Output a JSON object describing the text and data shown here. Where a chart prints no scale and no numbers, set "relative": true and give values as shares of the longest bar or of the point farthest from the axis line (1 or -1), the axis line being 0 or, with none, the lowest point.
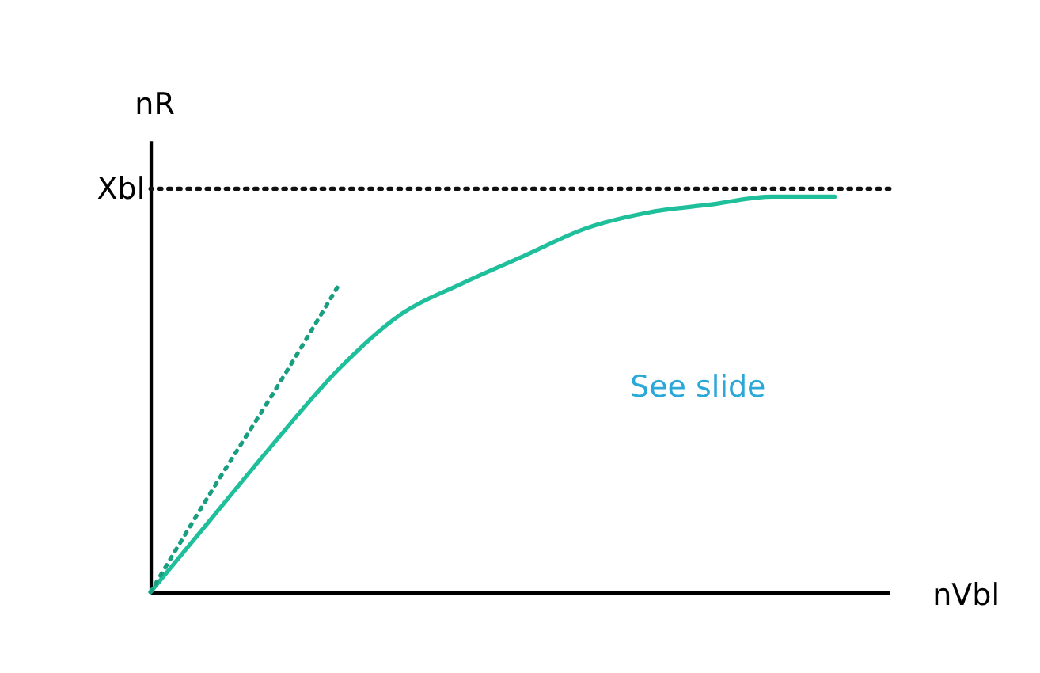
{
  "chart_data": {
    "type": "line",
    "relative": true,
    "xlabel": "nVbl",
    "ylabel": "nR",
    "categories": [
      null,
      null,
      null,
      null,
      null,
      null,
      null,
      null,
      null,
      null,
      null,
      null
    ],
    "series": [
      {
        "color": "#1fbf9c",
        "values": [
          0,
          0.19,
          0.38,
          0.56,
          0.7,
          0.78,
          0.85,
          0.92,
          0.96,
          0.98,
          1,
          1
        ],
        "line_style": "solid"
      },
      {
        "color": "#1a9e80",
        "values": [
          0,
          0.26,
          0.51,
          0.77,
          null,
          null,
          null,
          null,
          null,
          null,
          null,
          null
        ],
        "line_style": "dotted"
      }
    ],
    "ref_lines": [
      {
        "axis": "y",
        "value": 1.02,
        "label": "Xbl",
        "color": "#111111",
        "line_style": "dotted"
      }
    ],
    "annotations": [
      "See slide"
    ],
    "grid": false,
    "marker": "none"
  }
}
